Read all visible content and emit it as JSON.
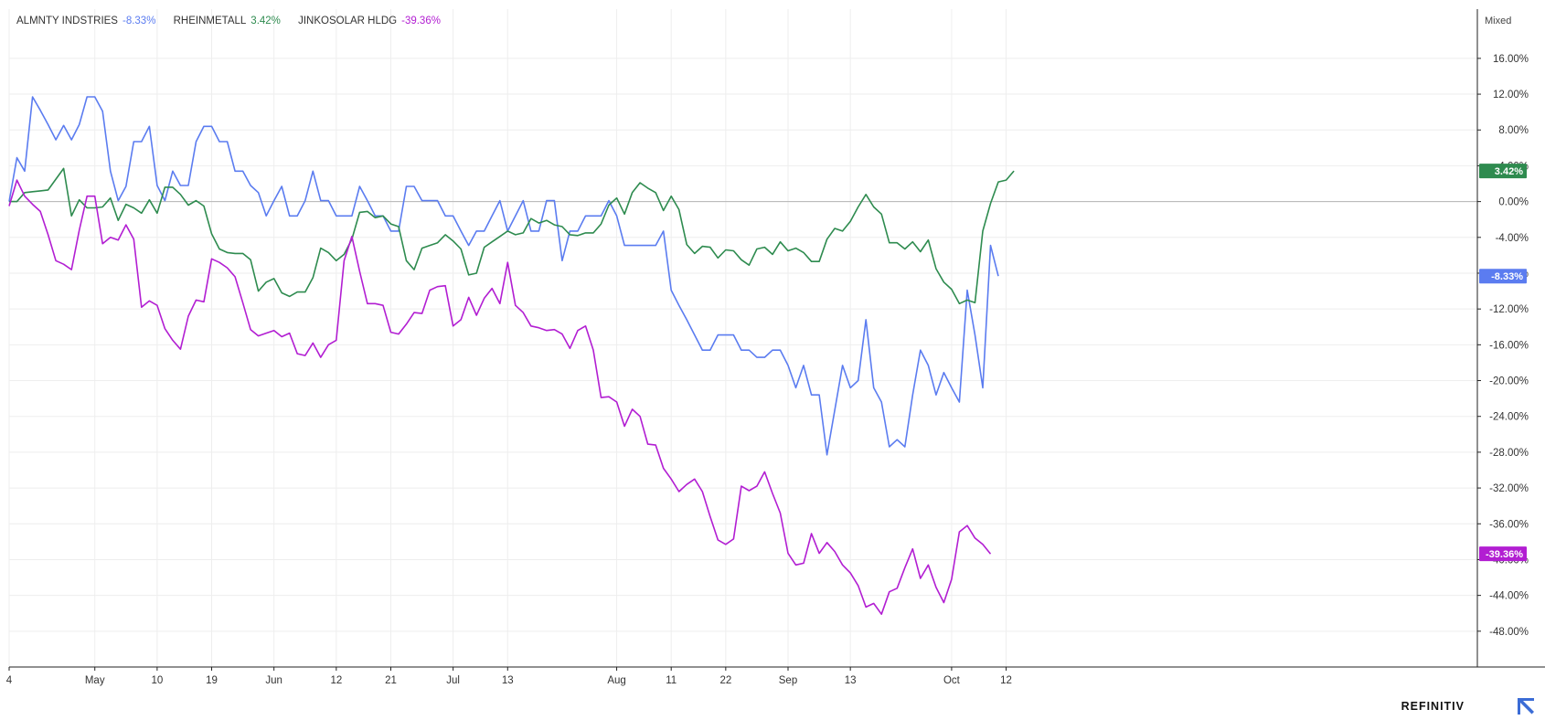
{
  "scale_mode": "Mixed",
  "brand": "REFINITIV",
  "colors": {
    "grid": "#eeeeee",
    "axis": "#222222",
    "zero_line": "#b5b5b5",
    "tick_text": "#333333"
  },
  "chart_data": {
    "type": "line",
    "ylim": [
      -52,
      21.5
    ],
    "yticks": [
      16,
      12,
      8,
      4,
      0,
      -4,
      -8,
      -12,
      -16,
      -20,
      -24,
      -28,
      -32,
      -36,
      -40,
      -44,
      -48
    ],
    "ytick_labels": [
      "16.00%",
      "12.00%",
      "8.00%",
      "4.00%",
      "0.00%",
      "-4.00%",
      "-8.00%",
      "-12.00%",
      "-16.00%",
      "-20.00%",
      "-24.00%",
      "-28.00%",
      "-32.00%",
      "-36.00%",
      "-40.00%",
      "-44.00%",
      "-48.00%"
    ],
    "x_count": 133,
    "xticks": [
      {
        "label": "4",
        "index": 0
      },
      {
        "label": "May",
        "index": 11
      },
      {
        "label": "10",
        "index": 19
      },
      {
        "label": "19",
        "index": 26
      },
      {
        "label": "Jun",
        "index": 34
      },
      {
        "label": "12",
        "index": 42
      },
      {
        "label": "21",
        "index": 49
      },
      {
        "label": "Jul",
        "index": 57
      },
      {
        "label": "13",
        "index": 64
      },
      {
        "label": "Aug",
        "index": 78
      },
      {
        "label": "11",
        "index": 85
      },
      {
        "label": "22",
        "index": 92
      },
      {
        "label": "Sep",
        "index": 100
      },
      {
        "label": "13",
        "index": 108
      },
      {
        "label": "Oct",
        "index": 121
      },
      {
        "label": "12",
        "index": 128
      }
    ],
    "series": [
      {
        "name": "ALMNTY INDSTRIES",
        "last_label": "-8.33%",
        "color": "#5b7cf0",
        "values": [
          0.0,
          4.9,
          3.4,
          11.7,
          10.2,
          8.6,
          6.9,
          8.5,
          6.9,
          8.6,
          11.7,
          11.7,
          10.1,
          3.4,
          0.1,
          1.7,
          6.7,
          6.7,
          8.4,
          1.8,
          0.1,
          3.4,
          1.8,
          1.8,
          6.7,
          8.4,
          8.4,
          6.7,
          6.7,
          3.4,
          3.4,
          1.8,
          1.0,
          -1.6,
          0.1,
          1.7,
          -1.6,
          -1.6,
          0.1,
          3.4,
          0.1,
          0.1,
          -1.6,
          -1.6,
          -1.6,
          1.7,
          0.1,
          -1.6,
          -1.6,
          -3.3,
          -3.3,
          1.7,
          1.7,
          0.1,
          0.1,
          0.1,
          -1.6,
          -1.6,
          -3.3,
          -4.9,
          -3.3,
          -3.3,
          -1.6,
          0.1,
          -3.3,
          -1.6,
          0.1,
          -3.3,
          -3.3,
          0.1,
          0.1,
          -6.6,
          -3.3,
          -3.3,
          -1.6,
          -1.6,
          -1.6,
          0.1,
          -1.6,
          -4.9,
          -4.9,
          -4.9,
          -4.9,
          -4.9,
          -3.3,
          -9.9,
          -11.6,
          -13.2,
          -14.9,
          -16.6,
          -16.6,
          -14.9,
          -14.9,
          -14.9,
          -16.6,
          -16.6,
          -17.4,
          -17.4,
          -16.6,
          -16.6,
          -18.3,
          -20.8,
          -18.3,
          -21.6,
          -21.6,
          -28.3,
          -23.3,
          -18.3,
          -20.8,
          -20.0,
          -13.2,
          -20.8,
          -22.4,
          -27.4,
          -26.6,
          -27.4,
          -21.6,
          -16.6,
          -18.3,
          -21.6,
          -19.1,
          -20.8,
          -22.4,
          -9.9,
          -14.9,
          -20.8,
          -4.9,
          -8.33
        ]
      },
      {
        "name": "RHEINMETALL",
        "last_label": "3.42%",
        "color": "#2e8b4f",
        "values": [
          0.0,
          0.0,
          1.0,
          1.1,
          1.2,
          1.3,
          2.5,
          3.7,
          -1.6,
          0.2,
          -0.7,
          -0.7,
          -0.6,
          0.4,
          -2.1,
          -0.3,
          -0.7,
          -1.3,
          0.2,
          -1.3,
          1.6,
          1.6,
          0.8,
          -0.4,
          0.1,
          -0.5,
          -3.6,
          -5.3,
          -5.7,
          -5.8,
          -5.8,
          -6.5,
          -10.0,
          -9.0,
          -8.6,
          -10.2,
          -10.6,
          -10.1,
          -10.1,
          -8.5,
          -5.2,
          -5.7,
          -6.6,
          -5.9,
          -4.2,
          -1.2,
          -1.1,
          -1.8,
          -1.6,
          -2.5,
          -2.8,
          -6.6,
          -7.6,
          -5.2,
          -4.9,
          -4.6,
          -3.7,
          -4.4,
          -5.3,
          -8.2,
          -8.0,
          -5.1,
          -4.5,
          -3.9,
          -3.3,
          -3.7,
          -3.5,
          -1.9,
          -2.4,
          -2.1,
          -2.6,
          -2.8,
          -3.7,
          -3.8,
          -3.5,
          -3.5,
          -2.5,
          -0.4,
          0.4,
          -1.4,
          1.0,
          2.1,
          1.5,
          1.0,
          -1.0,
          0.6,
          -0.9,
          -4.8,
          -5.8,
          -5.0,
          -5.1,
          -6.3,
          -5.4,
          -5.5,
          -6.5,
          -7.1,
          -5.3,
          -5.1,
          -5.9,
          -4.5,
          -5.5,
          -5.2,
          -5.7,
          -6.7,
          -6.7,
          -4.2,
          -3.0,
          -3.3,
          -2.2,
          -0.6,
          0.8,
          -0.6,
          -1.4,
          -4.6,
          -4.6,
          -5.3,
          -4.5,
          -5.6,
          -4.3,
          -7.5,
          -9.0,
          -9.8,
          -11.4,
          -11.0,
          -11.3,
          -3.3,
          -0.2,
          2.2,
          2.4,
          3.42
        ]
      },
      {
        "name": "JINKOSOLAR HLDG",
        "last_label": "-39.36%",
        "color": "#b21ed2",
        "values": [
          -0.5,
          2.4,
          0.6,
          -0.3,
          -1.1,
          -3.7,
          -6.6,
          -7.0,
          -7.6,
          -3.2,
          0.6,
          0.6,
          -4.7,
          -4.0,
          -4.3,
          -2.6,
          -4.2,
          -11.8,
          -11.1,
          -11.6,
          -14.2,
          -15.5,
          -16.5,
          -12.8,
          -11.0,
          -11.2,
          -6.4,
          -6.8,
          -7.4,
          -8.4,
          -11.3,
          -14.3,
          -15.0,
          -14.7,
          -14.4,
          -15.1,
          -14.7,
          -17.0,
          -17.2,
          -15.8,
          -17.4,
          -16.0,
          -15.5,
          -6.6,
          -3.9,
          -7.8,
          -11.4,
          -11.4,
          -11.6,
          -14.6,
          -14.8,
          -13.7,
          -12.4,
          -12.5,
          -9.9,
          -9.5,
          -9.4,
          -13.9,
          -13.2,
          -10.7,
          -12.7,
          -10.8,
          -9.7,
          -11.4,
          -6.8,
          -11.6,
          -12.4,
          -13.9,
          -14.1,
          -14.4,
          -14.3,
          -14.8,
          -16.4,
          -14.4,
          -13.9,
          -16.6,
          -21.9,
          -21.8,
          -22.4,
          -25.1,
          -23.2,
          -24.0,
          -27.1,
          -27.2,
          -29.8,
          -31.0,
          -32.4,
          -31.6,
          -31.0,
          -32.4,
          -35.2,
          -37.8,
          -38.3,
          -37.7,
          -31.8,
          -32.3,
          -31.8,
          -30.2,
          -32.6,
          -34.8,
          -39.3,
          -40.6,
          -40.4,
          -37.1,
          -39.3,
          -38.1,
          -39.1,
          -40.6,
          -41.5,
          -42.9,
          -45.3,
          -44.9,
          -46.1,
          -43.6,
          -43.2,
          -40.9,
          -38.8,
          -42.1,
          -40.6,
          -43.1,
          -44.8,
          -42.2,
          -36.9,
          -36.2,
          -37.6,
          -38.3,
          -39.36
        ]
      }
    ]
  }
}
